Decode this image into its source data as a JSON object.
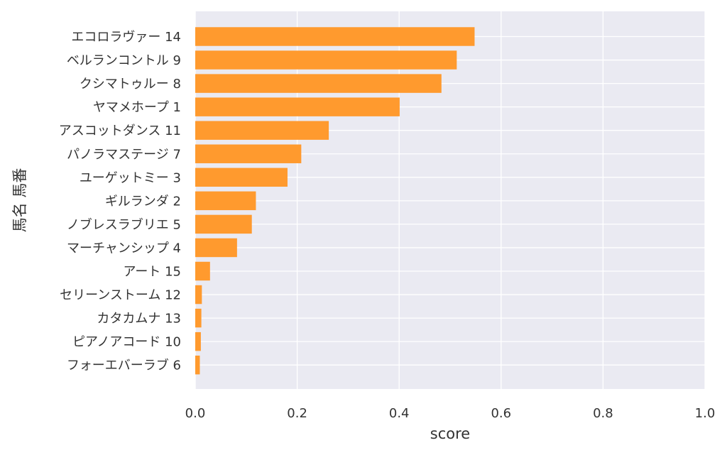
{
  "chart_data": {
    "type": "bar",
    "orientation": "horizontal",
    "categories": [
      "エコロラヴァー 14",
      "ベルランコントル 9",
      "クシマトゥルー 8",
      "ヤマメホープ 1",
      "アスコットダンス 11",
      "パノラマステージ 7",
      "ユーゲットミー 3",
      "ギルランダ 2",
      "ノブレスラブリエ 5",
      "マーチャンシップ 4",
      "アート 15",
      "セリーンストーム 12",
      "カタカムナ 13",
      "ピアノアコード 10",
      "フォーエバーラブ 6"
    ],
    "values": [
      0.548,
      0.513,
      0.483,
      0.401,
      0.262,
      0.208,
      0.181,
      0.119,
      0.111,
      0.082,
      0.029,
      0.013,
      0.012,
      0.011,
      0.009
    ],
    "xlabel": "score",
    "ylabel": "馬名 馬番",
    "xlim": [
      0.0,
      1.0
    ],
    "xticks": [
      "0.0",
      "0.2",
      "0.4",
      "0.6",
      "0.8",
      "1.0"
    ],
    "grid": true,
    "colors": {
      "bar": "#ff9a2e",
      "background": "#eaeaf2",
      "grid": "#ffffff",
      "text": "#333333"
    }
  }
}
